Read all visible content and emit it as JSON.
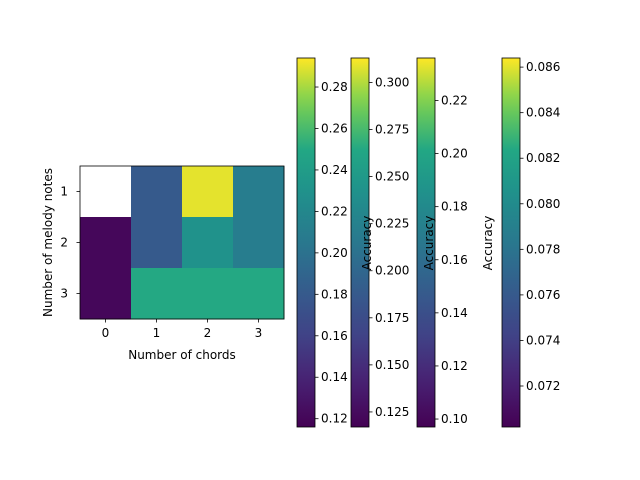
{
  "chart_data": {
    "type": "heatmap",
    "colormap": "viridis",
    "x_label": "Number of chords",
    "y_label": "Number of melody notes",
    "x_ticks": [
      "0",
      "1",
      "2",
      "3"
    ],
    "y_ticks": [
      "1",
      "2",
      "3"
    ],
    "values": [
      [
        null,
        0.18,
        0.29,
        0.21
      ],
      [
        0.12,
        0.18,
        0.23,
        0.21
      ],
      [
        0.12,
        0.25,
        0.25,
        0.25
      ]
    ],
    "colorbars": [
      {
        "label": "",
        "min": 0.116,
        "max": 0.294,
        "ticks": [
          0.12,
          0.14,
          0.16,
          0.18,
          0.2,
          0.22,
          0.24,
          0.26,
          0.28
        ],
        "tick_labels": [
          "0.12",
          "0.14",
          "0.16",
          "0.18",
          "0.20",
          "0.22",
          "0.24",
          "0.26",
          "0.28"
        ]
      },
      {
        "label": "Accuracy",
        "min": 0.117,
        "max": 0.313,
        "ticks": [
          0.125,
          0.15,
          0.175,
          0.2,
          0.225,
          0.25,
          0.275,
          0.3
        ],
        "tick_labels": [
          "0.125",
          "0.150",
          "0.175",
          "0.200",
          "0.225",
          "0.250",
          "0.275",
          "0.300"
        ]
      },
      {
        "label": "Accuracy",
        "min": 0.097,
        "max": 0.236,
        "ticks": [
          0.1,
          0.12,
          0.14,
          0.16,
          0.18,
          0.2,
          0.22
        ],
        "tick_labels": [
          "0.10",
          "0.12",
          "0.14",
          "0.16",
          "0.18",
          "0.20",
          "0.22"
        ]
      },
      {
        "label": "Accuracy",
        "min": 0.0702,
        "max": 0.0864,
        "ticks": [
          0.072,
          0.074,
          0.076,
          0.078,
          0.08,
          0.082,
          0.084,
          0.086
        ],
        "tick_labels": [
          "0.072",
          "0.074",
          "0.076",
          "0.078",
          "0.080",
          "0.082",
          "0.084",
          "0.086"
        ]
      }
    ]
  }
}
